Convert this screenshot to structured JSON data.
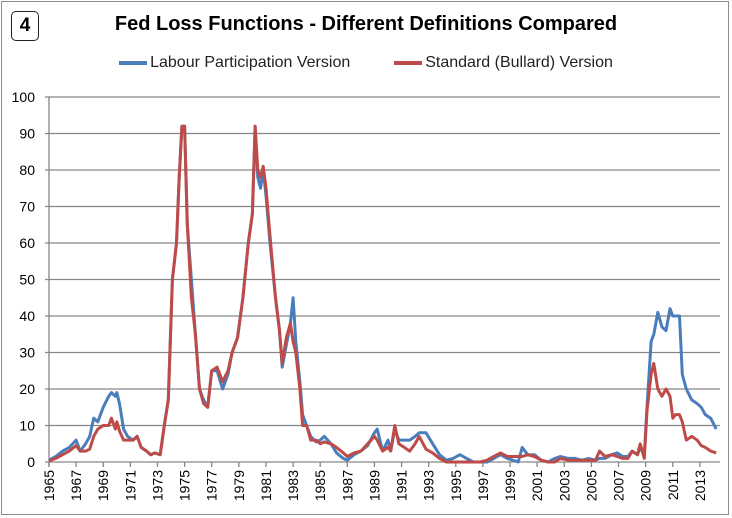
{
  "badge": "4",
  "chart_data": {
    "type": "line",
    "title": "Fed Loss Functions - Different Definitions Compared",
    "xlabel": "",
    "ylabel": "",
    "ylim": [
      0,
      100
    ],
    "xlim": [
      1965,
      2014.5
    ],
    "yticks": [
      "0",
      "10",
      "20",
      "30",
      "40",
      "50",
      "60",
      "70",
      "80",
      "90",
      "100"
    ],
    "xticks": [
      "1965",
      "1967",
      "1969",
      "1971",
      "1973",
      "1975",
      "1977",
      "1979",
      "1981",
      "1983",
      "1985",
      "1987",
      "1989",
      "1991",
      "1993",
      "1995",
      "1997",
      "1999",
      "2001",
      "2003",
      "2005",
      "2007",
      "2009",
      "2011",
      "2013"
    ],
    "grid": true,
    "legend_position": "top",
    "x": [
      1965.0,
      1965.5,
      1966,
      1966.5,
      1967,
      1967.3,
      1967.7,
      1968,
      1968.3,
      1968.6,
      1969,
      1969.4,
      1969.6,
      1969.9,
      1970,
      1970.2,
      1970.5,
      1970.8,
      1971.2,
      1971.5,
      1971.8,
      1972.2,
      1972.5,
      1972.8,
      1973.2,
      1973.5,
      1973.8,
      1974.1,
      1974.4,
      1974.6,
      1974.8,
      1975.0,
      1975.2,
      1975.5,
      1975.8,
      1976.1,
      1976.4,
      1976.7,
      1977.0,
      1977.4,
      1977.8,
      1978.2,
      1978.5,
      1978.9,
      1979.3,
      1979.7,
      1980.0,
      1980.2,
      1980.4,
      1980.6,
      1980.8,
      1981.0,
      1981.3,
      1981.7,
      1982.0,
      1982.2,
      1982.5,
      1982.8,
      1983.0,
      1983.2,
      1983.5,
      1983.7,
      1984.0,
      1984.3,
      1984.7,
      1985.0,
      1985.3,
      1985.8,
      1986.2,
      1986.7,
      1987.0,
      1987.5,
      1988.0,
      1988.5,
      1989.0,
      1989.2,
      1989.6,
      1990.0,
      1990.2,
      1990.5,
      1990.8,
      1991.2,
      1991.6,
      1992.0,
      1992.3,
      1992.8,
      1993.3,
      1993.8,
      1994.3,
      1994.8,
      1995.3,
      1995.8,
      1996.3,
      1996.8,
      1997.3,
      1997.8,
      1998.3,
      1998.8,
      1999.2,
      1999.6,
      1999.9,
      2000.3,
      2000.8,
      2001.3,
      2001.8,
      2002.3,
      2002.7,
      2003.3,
      2003.8,
      2004.3,
      2004.8,
      2005.3,
      2005.6,
      2006.0,
      2006.5,
      2006.9,
      2007.3,
      2007.7,
      2008.0,
      2008.4,
      2008.6,
      2008.9,
      2009.1,
      2009.4,
      2009.6,
      2009.9,
      2010.2,
      2010.5,
      2010.8,
      2011.0,
      2011.2,
      2011.5,
      2011.7,
      2012.0,
      2012.4,
      2012.8,
      2013.1,
      2013.4,
      2013.8,
      2014.2
    ],
    "series": [
      {
        "name": "Labour Participation Version",
        "color": "#4a7ebb",
        "values": [
          0.5,
          1.5,
          3,
          4,
          6,
          3,
          5,
          7,
          12,
          11,
          15,
          18,
          19,
          18,
          19,
          16,
          9,
          7,
          6,
          7,
          4,
          3,
          2,
          2.5,
          2,
          10,
          17,
          50,
          60,
          78,
          92,
          92,
          65,
          50,
          35,
          20,
          17,
          15,
          25,
          25,
          20,
          24,
          30,
          34,
          45,
          60,
          68,
          92,
          78,
          75,
          80,
          73,
          60,
          45,
          36,
          26,
          32,
          38,
          45,
          33,
          22,
          13,
          10,
          7,
          5.5,
          6,
          7,
          5,
          2.5,
          1,
          0.5,
          2,
          3,
          4.5,
          8,
          9,
          3,
          6,
          3,
          9,
          6,
          6,
          6,
          7,
          8,
          8,
          5,
          2,
          0.5,
          1,
          2,
          1,
          0,
          0,
          0,
          1,
          2,
          1,
          0.5,
          0,
          4,
          2,
          2,
          0.5,
          0,
          1,
          1.5,
          1,
          1,
          0.5,
          1,
          0.5,
          1,
          1,
          2,
          2.5,
          1.5,
          1.5,
          3,
          2,
          4,
          2,
          15,
          33,
          35,
          41,
          37,
          36,
          42,
          40,
          40,
          40,
          24,
          20,
          17,
          16,
          15,
          13,
          12,
          9
        ]
      },
      {
        "name": "Standard (Bullard) Version",
        "color": "#be4b48",
        "values": [
          0.3,
          1,
          2,
          3,
          4.5,
          3,
          3,
          3.5,
          7,
          9,
          10,
          10,
          12,
          9,
          11,
          8.5,
          6,
          6,
          6,
          7,
          4,
          3,
          2,
          2.5,
          2,
          10,
          17,
          50,
          60,
          78,
          92,
          92,
          65,
          45,
          35,
          20,
          16,
          15,
          25,
          26,
          22,
          25,
          30,
          34,
          45,
          60,
          68,
          92,
          80,
          78,
          81,
          75,
          62,
          45,
          36,
          27,
          34,
          38,
          33,
          30,
          20,
          10,
          10,
          6,
          6,
          5,
          5.5,
          5,
          4,
          2.5,
          1.5,
          2.5,
          3,
          5,
          7,
          6,
          3,
          4,
          3,
          10,
          5,
          4,
          3,
          5,
          7,
          3.5,
          2.5,
          1,
          0,
          0,
          0,
          0,
          0,
          0,
          0.5,
          1.5,
          2.5,
          1.5,
          1.5,
          1.5,
          1.5,
          2,
          1.5,
          0.5,
          0,
          0,
          1,
          0.5,
          0.5,
          0.5,
          0.5,
          0.5,
          3,
          1.5,
          2,
          1.5,
          1,
          1,
          3,
          2,
          5,
          1,
          14,
          24,
          27,
          20,
          18,
          20,
          18,
          12,
          13,
          13,
          11,
          6,
          7,
          6,
          4.5,
          4,
          3,
          2.5
        ]
      }
    ]
  }
}
